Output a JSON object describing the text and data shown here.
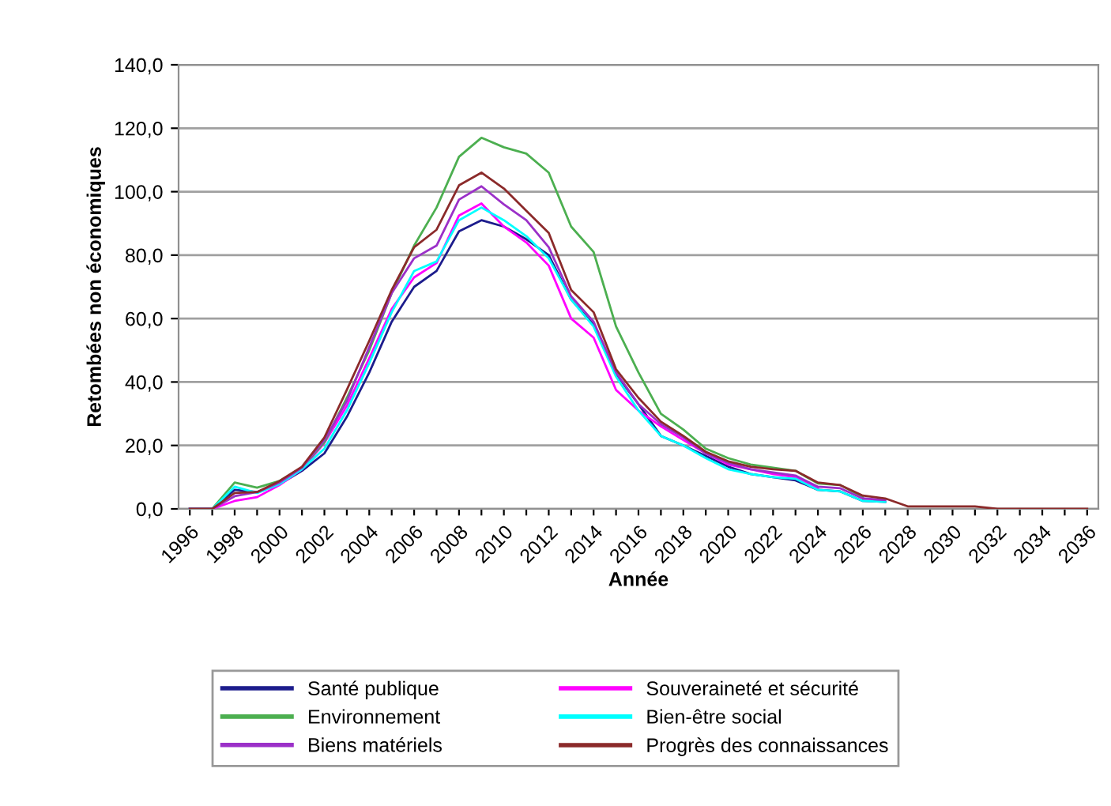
{
  "chart_data": {
    "type": "line",
    "xlabel": "Année",
    "ylabel": "Retombées non économiques",
    "categories": [
      "1996",
      null,
      "1998",
      null,
      "2000",
      null,
      "2002",
      null,
      "2004",
      null,
      "2006",
      null,
      "2008",
      null,
      "2010",
      null,
      "2012",
      null,
      "2014",
      null,
      "2016",
      null,
      "2018",
      null,
      "2020",
      null,
      "2022",
      null,
      "2024",
      null,
      "2026",
      null,
      "2028",
      null,
      "2030",
      null,
      "2032",
      null,
      "2034",
      null,
      "2036"
    ],
    "ylim": [
      0,
      140
    ],
    "yticks": [
      {
        "value": 0,
        "label": "0,0"
      },
      {
        "value": 20,
        "label": "20,0"
      },
      {
        "value": 40,
        "label": "40,0"
      },
      {
        "value": 60,
        "label": "60,0"
      },
      {
        "value": 80,
        "label": "80,0"
      },
      {
        "value": 100,
        "label": "100,0"
      },
      {
        "value": 120,
        "label": "120,0"
      },
      {
        "value": 140,
        "label": "140,0"
      }
    ],
    "grid": "y",
    "legend": "bottom",
    "marker": "none",
    "line_style": "solid",
    "series": [
      {
        "name": "Santé publique",
        "color": "#1c1c8c",
        "values": [
          0,
          0,
          6,
          5.3,
          7.8,
          12,
          17.5,
          29,
          43,
          59,
          70,
          75,
          87.5,
          91,
          89,
          85,
          80,
          66,
          58,
          42.5,
          33,
          23,
          20,
          16.7,
          13.3,
          11,
          10,
          9,
          6,
          5.5,
          2.5,
          2.2,
          null,
          null,
          null,
          null,
          null,
          null,
          null,
          null,
          null
        ]
      },
      {
        "name": "Souveraineté et sécurité",
        "color": "#ff00ff",
        "values": [
          0,
          0,
          2.5,
          3.7,
          7.5,
          12.5,
          20.8,
          32.5,
          47.5,
          63,
          73,
          77.5,
          92.5,
          96.3,
          89,
          84,
          76.7,
          60,
          54,
          37.5,
          31,
          26,
          21.7,
          17.5,
          14,
          12.5,
          11,
          10,
          6.7,
          null,
          null,
          null,
          null,
          null,
          null,
          null,
          null,
          null,
          null,
          null,
          null
        ]
      },
      {
        "name": "Environnement",
        "color": "#4caf50",
        "values": [
          0,
          0,
          8.3,
          6.7,
          8.8,
          13,
          21,
          35,
          50,
          68,
          83,
          95,
          111,
          117,
          114,
          112,
          106,
          89,
          81,
          57.5,
          43,
          30,
          25,
          19,
          16,
          14,
          13,
          12,
          8,
          7.5,
          3.7,
          null,
          null,
          null,
          null,
          null,
          null,
          null,
          null,
          null,
          null
        ]
      },
      {
        "name": "Bien-être social",
        "color": "#00ffff",
        "values": [
          0,
          0,
          7,
          5,
          7.8,
          12.5,
          19,
          31,
          46,
          62,
          75,
          78,
          91,
          95,
          91,
          86,
          79,
          66,
          57.5,
          41.7,
          31,
          23,
          20,
          16,
          12.5,
          11,
          10,
          9.5,
          6,
          5.5,
          2.5,
          2.2,
          null,
          null,
          null,
          null,
          null,
          null,
          null,
          null,
          null
        ]
      },
      {
        "name": "Biens matériels",
        "color": "#9b30c8",
        "values": [
          0,
          0,
          4,
          5.3,
          8.3,
          13,
          21.7,
          34,
          51,
          68,
          79,
          83,
          97.5,
          101.7,
          96,
          91,
          82.5,
          67,
          59,
          43,
          33,
          26.7,
          22.5,
          17.5,
          14.5,
          12.5,
          11.5,
          10.5,
          7,
          6.5,
          3.3,
          2.8,
          null,
          null,
          null,
          null,
          null,
          null,
          null,
          null,
          null
        ]
      },
      {
        "name": "Progrès des connaissances",
        "color": "#8b2a2a",
        "values": [
          0,
          0,
          5,
          5.3,
          8.8,
          13.3,
          22.5,
          37.5,
          53,
          69,
          82.5,
          88,
          102,
          106,
          101,
          94,
          87,
          69,
          62,
          44,
          35,
          27.5,
          23,
          18,
          15,
          13.3,
          12.5,
          12,
          8.3,
          7.5,
          4.2,
          3.3,
          0.8,
          0.8,
          0.8,
          0.8,
          0,
          0,
          0,
          0,
          0
        ]
      }
    ]
  }
}
